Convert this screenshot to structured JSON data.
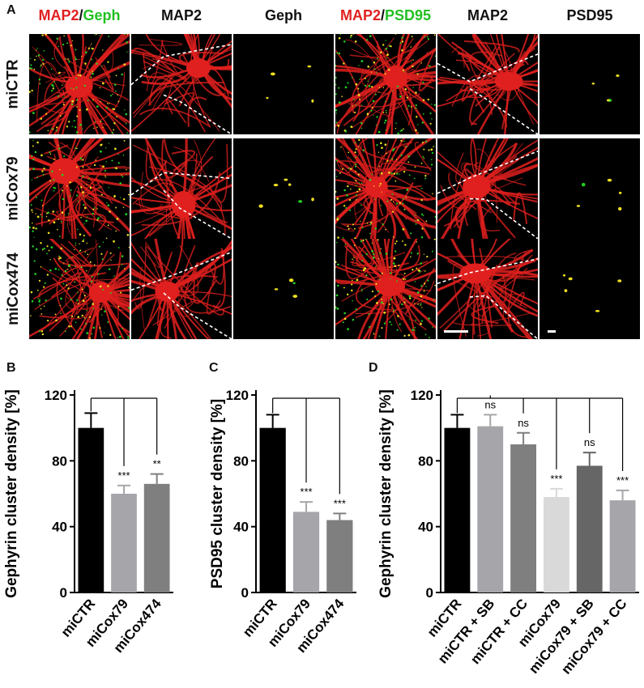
{
  "panel_letters": [
    "A",
    "B",
    "C",
    "D"
  ],
  "micrograph_grid": {
    "column_headers": [
      {
        "parts": [
          {
            "text": "MAP2",
            "color": "#e02020"
          },
          {
            "text": "/",
            "color": "#111111"
          },
          {
            "text": "Geph",
            "color": "#22c022"
          }
        ]
      },
      {
        "parts": [
          {
            "text": "MAP2",
            "color": "#111111"
          }
        ]
      },
      {
        "parts": [
          {
            "text": "Geph",
            "color": "#111111"
          }
        ]
      },
      {
        "parts": [
          {
            "text": "MAP2",
            "color": "#e02020"
          },
          {
            "text": "/",
            "color": "#111111"
          },
          {
            "text": "PSD95",
            "color": "#22c022"
          }
        ]
      },
      {
        "parts": [
          {
            "text": "MAP2",
            "color": "#111111"
          }
        ]
      },
      {
        "parts": [
          {
            "text": "PSD95",
            "color": "#111111"
          }
        ]
      }
    ],
    "row_labels": [
      "miCTR",
      "miCox79",
      "miCox474"
    ],
    "channel_colors": {
      "map2": "#e0201e",
      "marker": "#22d022",
      "overlap": "#f0e020",
      "background": "#000000"
    }
  },
  "chart_data": [
    {
      "type": "bar",
      "panel": "B",
      "categories": [
        "miCTR",
        "miCox79",
        "miCox474"
      ],
      "values": [
        100,
        60,
        66
      ],
      "errors": [
        9,
        5,
        6
      ],
      "significance": [
        "",
        "***",
        "**"
      ],
      "colors": [
        "#000000",
        "#a6a6aa",
        "#7f7f7f"
      ],
      "ylabel": "Gephyrin cluster density [%]",
      "ylim": [
        0,
        120
      ],
      "yticks": [
        0,
        40,
        80,
        120
      ]
    },
    {
      "type": "bar",
      "panel": "C",
      "categories": [
        "miCTR",
        "miCox79",
        "miCox474"
      ],
      "values": [
        100,
        49,
        44
      ],
      "errors": [
        8,
        6,
        4
      ],
      "significance": [
        "",
        "***",
        "***"
      ],
      "colors": [
        "#000000",
        "#a6a6aa",
        "#7f7f7f"
      ],
      "ylabel": "PSD95 cluster density [%]",
      "ylim": [
        0,
        120
      ],
      "yticks": [
        0,
        40,
        80,
        120
      ]
    },
    {
      "type": "bar",
      "panel": "D",
      "categories": [
        "miCTR",
        "miCTR + SB",
        "miCTR + CC",
        "miCox79",
        "miCox79 + SB",
        "miCox79 + CC"
      ],
      "values": [
        100,
        101,
        90,
        58,
        77,
        56
      ],
      "errors": [
        8,
        7,
        7,
        5,
        8,
        6
      ],
      "significance": [
        "",
        "ns",
        "ns",
        "***",
        "ns",
        "***"
      ],
      "colors": [
        "#000000",
        "#a6a6aa",
        "#7f7f7f",
        "#d9d9d9",
        "#666666",
        "#a6a6aa"
      ],
      "ylabel": "Gephyrin cluster density [%]",
      "ylim": [
        0,
        120
      ],
      "yticks": [
        0,
        40,
        80,
        120
      ]
    }
  ]
}
